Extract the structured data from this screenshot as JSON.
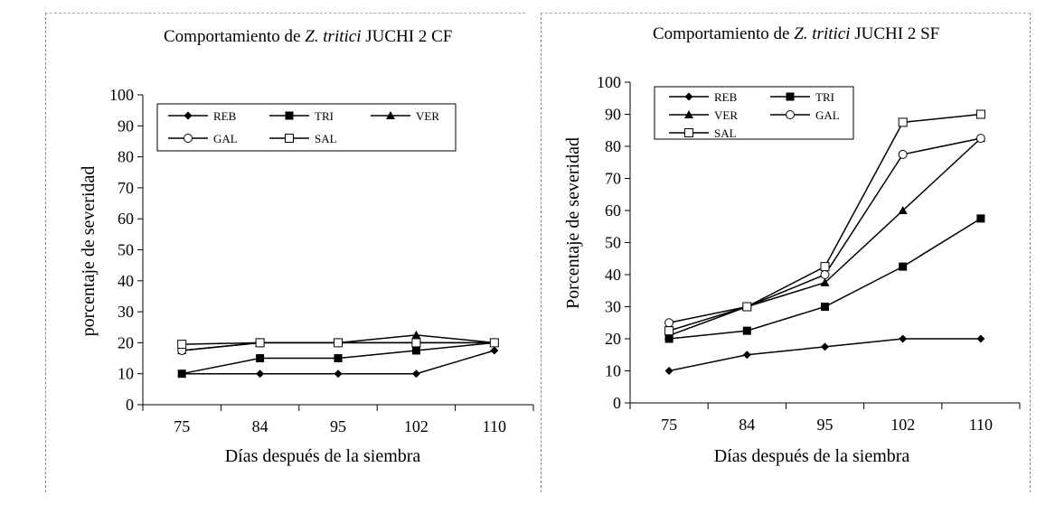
{
  "chart_data": [
    {
      "type": "line",
      "title_prefix": "Comportamiento de ",
      "title_italic": "Z. tritici",
      "title_suffix": " JUCHI 2  CF",
      "xlabel": "Días después de la siembra",
      "ylabel": "porcentaje de severidad",
      "categories": [
        "75",
        "84",
        "95",
        "102",
        "110"
      ],
      "ylim": [
        0,
        100
      ],
      "yticks": [
        0,
        10,
        20,
        30,
        40,
        50,
        60,
        70,
        80,
        90,
        100
      ],
      "legend_placement": "top",
      "series": [
        {
          "name": "REB",
          "marker": "diamond",
          "values": [
            10,
            10,
            10,
            10,
            17.5
          ]
        },
        {
          "name": "TRI",
          "marker": "square",
          "values": [
            10,
            15,
            15,
            17.5,
            20
          ]
        },
        {
          "name": "VER",
          "marker": "triangle",
          "values": [
            17.5,
            20,
            20,
            22.5,
            20
          ]
        },
        {
          "name": "GAL",
          "marker": "circle-open",
          "values": [
            17.5,
            20,
            20,
            20,
            20
          ]
        },
        {
          "name": "SAL",
          "marker": "square-open",
          "values": [
            19.5,
            20,
            20,
            20,
            20
          ]
        }
      ]
    },
    {
      "type": "line",
      "title_prefix": "Comportamiento de ",
      "title_italic": "Z. tritici",
      "title_suffix": " JUCHI 2  SF",
      "xlabel": "Días  después de la siembra",
      "ylabel": "Porcentaje de severidad",
      "categories": [
        "75",
        "84",
        "95",
        "102",
        "110"
      ],
      "ylim": [
        0,
        100
      ],
      "yticks": [
        0,
        10,
        20,
        30,
        40,
        50,
        60,
        70,
        80,
        90,
        100
      ],
      "legend_placement": "top-left",
      "series": [
        {
          "name": "REB",
          "marker": "diamond",
          "values": [
            10,
            15,
            17.5,
            20,
            20
          ]
        },
        {
          "name": "TRI",
          "marker": "square",
          "values": [
            20,
            22.5,
            30,
            42.5,
            57.5
          ]
        },
        {
          "name": "VER",
          "marker": "triangle",
          "values": [
            21,
            30,
            37.5,
            60,
            82.5
          ]
        },
        {
          "name": "GAL",
          "marker": "circle-open",
          "values": [
            25,
            30,
            40,
            77.5,
            82.5
          ]
        },
        {
          "name": "SAL",
          "marker": "square-open",
          "values": [
            22.5,
            30,
            42.5,
            87.5,
            90
          ]
        }
      ]
    }
  ]
}
